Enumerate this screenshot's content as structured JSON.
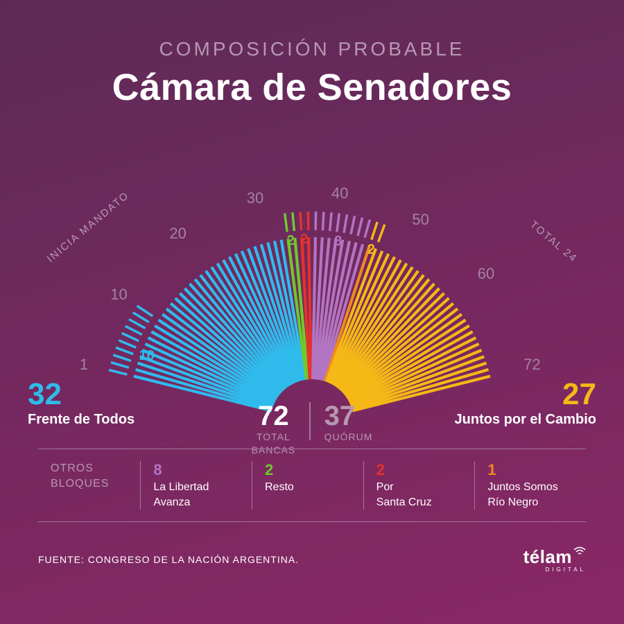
{
  "colors": {
    "bg_top": "#5d2a57",
    "bg_bottom": "#8a2766",
    "text_white": "#ffffff",
    "text_dim": "#b897b2",
    "text_scale": "#a583a0",
    "cyan": "#2fbbec",
    "green": "#6ec92e",
    "red": "#e4332c",
    "purple": "#b275c1",
    "yellow": "#f5b816",
    "orange": "#f08a1e",
    "divider": "#a27a9c"
  },
  "header": {
    "subtitle": "COMPOSICIÓN PROBABLE",
    "title": "Cámara de Senadores"
  },
  "chart": {
    "type": "radial-bar-parliament",
    "total_seats": 72,
    "angle_start_deg": -77,
    "angle_end_deg": 77,
    "inner_radius": 60,
    "outer_radius": 265,
    "tick_outer_inner": 275,
    "tick_outer_outer": 302,
    "segments": [
      {
        "name": "Frente de Todos",
        "count": 32,
        "color": "#2fbbec"
      },
      {
        "name": "Resto",
        "count": 2,
        "color": "#6ec92e"
      },
      {
        "name": "Por Santa Cruz",
        "count": 2,
        "color": "#e4332c"
      },
      {
        "name": "La Libertad Avanza",
        "count": 8,
        "color": "#b275c1"
      },
      {
        "name": "Juntos Somos Río Negro",
        "count": 1,
        "color": "#f08a1e"
      },
      {
        "name": "Juntos por el Cambio",
        "count": 27,
        "color": "#f5b816"
      }
    ],
    "mandate_ticks": {
      "count": 10,
      "color": "#2fbbec",
      "label": "10"
    },
    "outer_small_ticks": [
      {
        "start": 33,
        "count": 2,
        "color": "#6ec92e",
        "label": "2"
      },
      {
        "start": 35,
        "count": 2,
        "color": "#e4332c",
        "label": "2"
      },
      {
        "start": 37,
        "count": 8,
        "color": "#b275c1",
        "label": "8"
      },
      {
        "start": 45,
        "count": 2,
        "color": "#f5b816",
        "label": "2"
      }
    ],
    "scale_labels": [
      "1",
      "10",
      "20",
      "30",
      "40",
      "50",
      "60",
      "72"
    ],
    "scale_positions": [
      1,
      10,
      20,
      30,
      40,
      50,
      60,
      72
    ]
  },
  "labels": {
    "left_num": "32",
    "left_name": "Frente de Todos",
    "right_num": "27",
    "right_name": "Juntos  por el Cambio",
    "center_total_num": "72",
    "center_total_label_l1": "TOTAL",
    "center_total_label_l2": "BANCAS",
    "center_quorum_num": "37",
    "center_quorum_label": "QUÓRUM",
    "side_left": "INICIA MANDATO",
    "side_right": "TOTAL 24"
  },
  "bottom": {
    "heading_l1": "OTROS",
    "heading_l2": "BLOQUES",
    "blocs": [
      {
        "num": "8",
        "name_l1": "La Libertad",
        "name_l2": "Avanza",
        "color": "#b275c1"
      },
      {
        "num": "2",
        "name_l1": "Resto",
        "name_l2": "",
        "color": "#6ec92e"
      },
      {
        "num": "2",
        "name_l1": "Por",
        "name_l2": "Santa Cruz",
        "color": "#e4332c"
      },
      {
        "num": "1",
        "name_l1": "Juntos Somos",
        "name_l2": "Río Negro",
        "color": "#f08a1e"
      }
    ]
  },
  "footer": {
    "source": "FUENTE:  CONGRESO DE LA NACIÓN ARGENTINA.",
    "logo_main": "télam",
    "logo_sub": "DIGITAL"
  }
}
